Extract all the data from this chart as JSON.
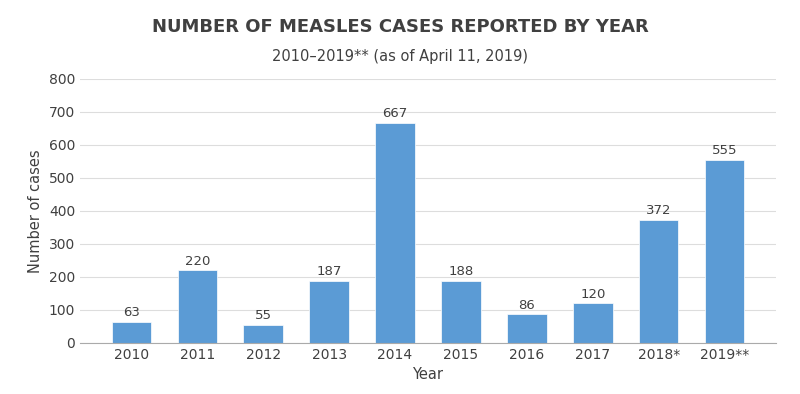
{
  "categories": [
    "2010",
    "2011",
    "2012",
    "2013",
    "2014",
    "2015",
    "2016",
    "2017",
    "2018*",
    "2019**"
  ],
  "values": [
    63,
    220,
    55,
    187,
    667,
    188,
    86,
    120,
    372,
    555
  ],
  "bar_color": "#5B9BD5",
  "title": "NUMBER OF MEASLES CASES REPORTED BY YEAR",
  "subtitle": "2010–2019** (as of April 11, 2019)",
  "xlabel": "Year",
  "ylabel": "Number of cases",
  "ylim": [
    0,
    800
  ],
  "yticks": [
    0,
    100,
    200,
    300,
    400,
    500,
    600,
    700,
    800
  ],
  "title_fontsize": 13,
  "subtitle_fontsize": 10.5,
  "label_fontsize": 10.5,
  "tick_fontsize": 10,
  "value_label_fontsize": 9.5,
  "background_color": "#ffffff",
  "bar_edge_color": "white",
  "bar_edge_width": 0.5
}
